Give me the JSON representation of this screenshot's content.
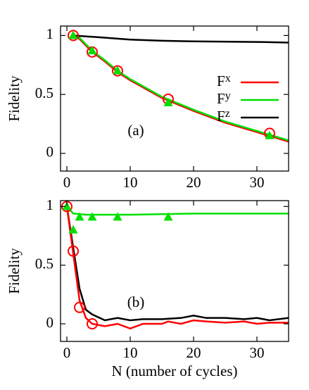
{
  "chart_data": [
    {
      "type": "line",
      "ylabel": "Fidelity",
      "annotation": "(a)",
      "xlim": [
        -1,
        35
      ],
      "ylim": [
        -0.15,
        1.08
      ],
      "xticks": [
        0,
        10,
        20,
        30
      ],
      "yticks": [
        0,
        0.5,
        1
      ],
      "legend": "upper right",
      "series": [
        {
          "name": "Fx",
          "color": "#ff0000",
          "x": [
            1,
            2,
            4,
            6,
            8,
            10,
            12,
            15,
            20,
            25,
            30,
            35
          ],
          "values": [
            1.0,
            0.97,
            0.86,
            0.78,
            0.69,
            0.62,
            0.56,
            0.47,
            0.36,
            0.26,
            0.18,
            0.1
          ]
        },
        {
          "name": "Fy",
          "color": "#00e000",
          "x": [
            1,
            2,
            4,
            6,
            8,
            10,
            12,
            15,
            20,
            25,
            30,
            35
          ],
          "values": [
            1.0,
            0.98,
            0.87,
            0.79,
            0.7,
            0.63,
            0.57,
            0.48,
            0.37,
            0.27,
            0.19,
            0.11
          ]
        },
        {
          "name": "Fz",
          "color": "#000000",
          "x": [
            1,
            5,
            10,
            15,
            20,
            30,
            35
          ],
          "values": [
            1.0,
            0.985,
            0.965,
            0.955,
            0.95,
            0.945,
            0.94
          ]
        },
        {
          "marker": "circle",
          "color": "#ff0000",
          "x": [
            1,
            4,
            8,
            16,
            32
          ],
          "values": [
            1.0,
            0.86,
            0.7,
            0.46,
            0.17
          ]
        },
        {
          "marker": "triangle",
          "color": "#00e000",
          "x": [
            1,
            4,
            8,
            16,
            32
          ],
          "values": [
            1.0,
            0.87,
            0.7,
            0.43,
            0.15
          ]
        }
      ]
    },
    {
      "type": "line",
      "ylabel": "Fidelity",
      "xlabel": "N (number of cycles)",
      "annotation": "(b)",
      "xlim": [
        -1,
        35
      ],
      "ylim": [
        -0.15,
        1.05
      ],
      "xticks": [
        0,
        10,
        20,
        30
      ],
      "yticks": [
        0,
        0.5,
        1
      ],
      "series": [
        {
          "color": "#00e000",
          "x": [
            0,
            1,
            3,
            10,
            20,
            35
          ],
          "values": [
            1.0,
            0.94,
            0.93,
            0.93,
            0.94,
            0.94
          ]
        },
        {
          "color": "#000000",
          "x": [
            0,
            1,
            2,
            3,
            4,
            6,
            8,
            10,
            12,
            15,
            18,
            20,
            22,
            25,
            28,
            30,
            32,
            35
          ],
          "values": [
            1.0,
            0.65,
            0.3,
            0.12,
            0.08,
            0.03,
            0.05,
            0.03,
            0.04,
            0.04,
            0.05,
            0.07,
            0.05,
            0.05,
            0.04,
            0.05,
            0.03,
            0.05
          ]
        },
        {
          "color": "#ff0000",
          "x": [
            0,
            1,
            2,
            3,
            4,
            6,
            8,
            10,
            12,
            15,
            16,
            18,
            20,
            22,
            25,
            28,
            30,
            32,
            35
          ],
          "values": [
            1.0,
            0.6,
            0.2,
            0.05,
            0.0,
            -0.02,
            0.0,
            -0.04,
            0.0,
            0.0,
            0.02,
            0.0,
            0.03,
            0.02,
            0.01,
            0.02,
            0.0,
            0.01,
            0.01
          ]
        },
        {
          "marker": "circle",
          "color": "#ff0000",
          "x": [
            0,
            1,
            2,
            4
          ],
          "values": [
            1.0,
            0.62,
            0.14,
            0.0
          ]
        },
        {
          "marker": "triangle",
          "color": "#00e000",
          "x": [
            0,
            1,
            2,
            4,
            8,
            16
          ],
          "values": [
            1.0,
            0.8,
            0.91,
            0.91,
            0.91,
            0.91
          ]
        }
      ]
    }
  ]
}
